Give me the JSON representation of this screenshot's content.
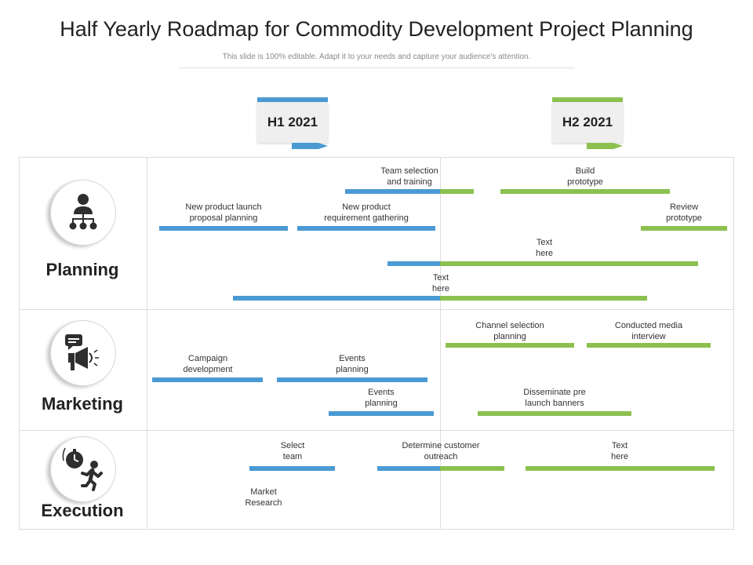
{
  "header": {
    "title": "Half Yearly Roadmap for Commodity Development Project Planning",
    "subtitle": "This slide is 100% editable. Adapt it to your needs and capture your audience's attention."
  },
  "colors": {
    "h1": "#4a9ad4",
    "h2": "#8cc04f",
    "grid": "#dcdcdc"
  },
  "phases": [
    {
      "label": "H1 2021",
      "color": "#4a9ad4"
    },
    {
      "label": "H2 2021",
      "color": "#8cc04f"
    }
  ],
  "categories": [
    {
      "name": "Planning",
      "icon": "org-person-icon"
    },
    {
      "name": "Marketing",
      "icon": "megaphone-chat-icon"
    },
    {
      "name": "Execution",
      "icon": "runner-stopwatch-icon"
    }
  ],
  "tasks": [
    {
      "category": "Planning",
      "label": "Team selection\nand training"
    },
    {
      "category": "Planning",
      "label": "Build\nprototype"
    },
    {
      "category": "Planning",
      "label": "New product launch\nproposal planning"
    },
    {
      "category": "Planning",
      "label": "New product\nrequirement gathering"
    },
    {
      "category": "Planning",
      "label": "Review\nprototype"
    },
    {
      "category": "Planning",
      "label": "Text\nhere"
    },
    {
      "category": "Planning",
      "label": "Text\nhere"
    },
    {
      "category": "Marketing",
      "label": "Channel selection\nplanning"
    },
    {
      "category": "Marketing",
      "label": "Conducted media\ninterview"
    },
    {
      "category": "Marketing",
      "label": "Campaign\ndevelopment"
    },
    {
      "category": "Marketing",
      "label": "Events\nplanning"
    },
    {
      "category": "Marketing",
      "label": "Events\nplanning"
    },
    {
      "category": "Marketing",
      "label": "Disseminate pre\nlaunch banners"
    },
    {
      "category": "Execution",
      "label": "Select\nteam"
    },
    {
      "category": "Execution",
      "label": "Determine customer\noutreach"
    },
    {
      "category": "Execution",
      "label": "Text\nhere"
    },
    {
      "category": "Execution",
      "label": "Market\nResearch"
    }
  ]
}
